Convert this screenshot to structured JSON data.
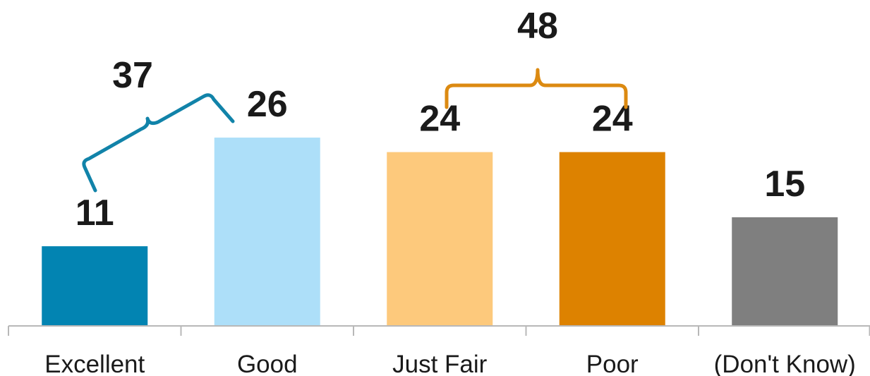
{
  "chart_data": {
    "type": "bar",
    "categories": [
      "Excellent",
      "Good",
      "Just Fair",
      "Poor",
      "(Don't Know)"
    ],
    "values": [
      11,
      26,
      24,
      24,
      15
    ],
    "colors": [
      "#0284b2",
      "#addff9",
      "#fdc97c",
      "#dd8200",
      "#7f7f7f"
    ],
    "ylim": [
      0,
      45
    ],
    "grid": false,
    "legend": "none",
    "groups": [
      {
        "label": "37",
        "categories": [
          "Excellent",
          "Good"
        ],
        "color": "#1183a9"
      },
      {
        "label": "48",
        "categories": [
          "Just Fair",
          "Poor"
        ],
        "color": "#dc8a11"
      }
    ]
  }
}
